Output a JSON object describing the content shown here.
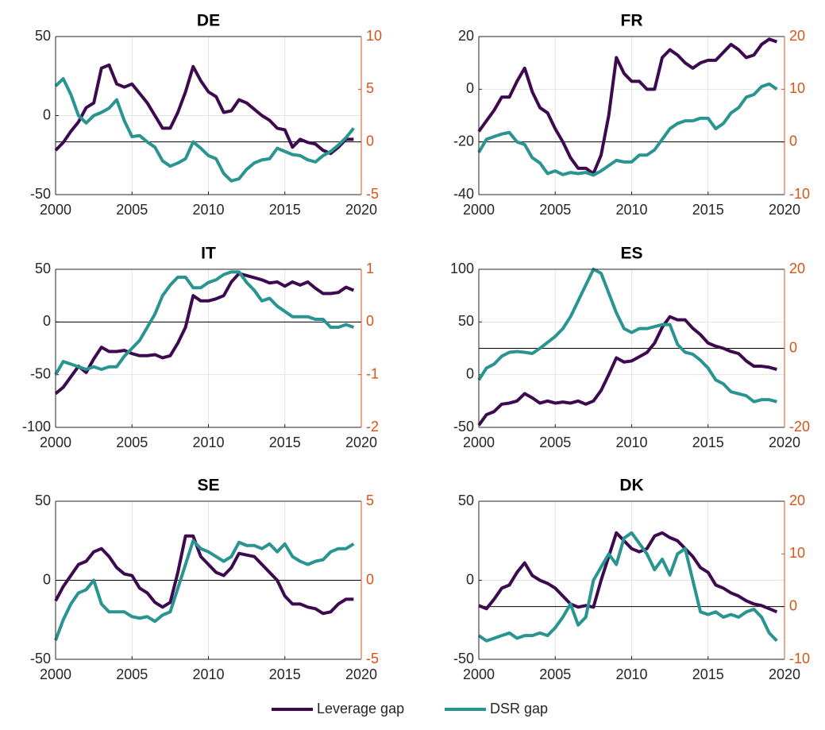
{
  "chart_data": [
    {
      "type": "line",
      "title": "DE",
      "x": [
        2000,
        2000.5,
        2001,
        2001.5,
        2002,
        2002.5,
        2003,
        2003.5,
        2004,
        2004.5,
        2005,
        2005.5,
        2006,
        2006.5,
        2007,
        2007.5,
        2008,
        2008.5,
        2009,
        2009.5,
        2010,
        2010.5,
        2011,
        2011.5,
        2012,
        2012.5,
        2013,
        2013.5,
        2014,
        2014.5,
        2015,
        2015.5,
        2016,
        2016.5,
        2017,
        2017.5,
        2018,
        2018.5,
        2019,
        2019.5
      ],
      "series": [
        {
          "name": "Leverage gap",
          "color": "#3d0a4f",
          "axis": "y",
          "values": [
            -22,
            -17,
            -10,
            -4,
            5,
            8,
            30,
            32,
            20,
            18,
            20,
            14,
            8,
            0,
            -8,
            -8,
            2,
            15,
            31,
            22,
            15,
            12,
            2,
            3,
            10,
            8,
            4,
            0,
            -3,
            -8,
            -9,
            -20,
            -15,
            -17,
            -18,
            -22,
            -24,
            -20,
            -15,
            -15
          ]
        },
        {
          "name": "DSR gap",
          "color": "#2a9490",
          "axis": "y2",
          "values": [
            5.3,
            6,
            4.5,
            2.5,
            1.8,
            2.5,
            2.8,
            3.2,
            4,
            2,
            0.5,
            0.6,
            0,
            -0.5,
            -1.8,
            -2.3,
            -2,
            -1.6,
            0,
            -0.6,
            -1.3,
            -1.6,
            -3,
            -3.7,
            -3.5,
            -2.6,
            -2,
            -1.7,
            -1.6,
            -0.6,
            -0.9,
            -1.2,
            -1.3,
            -1.7,
            -1.9,
            -1.3,
            -0.9,
            -0.3,
            0.4,
            1.3
          ]
        }
      ],
      "xlim": [
        2000,
        2020
      ],
      "xticks": [
        2000,
        2005,
        2010,
        2015,
        2020
      ],
      "ylim": [
        -50,
        50
      ],
      "yticks": [
        -50,
        0,
        50
      ],
      "y2lim": [
        -5,
        10
      ],
      "y2ticks": [
        -5,
        0,
        5,
        10
      ],
      "grid": true
    },
    {
      "type": "line",
      "title": "FR",
      "x": [
        2000,
        2000.5,
        2001,
        2001.5,
        2002,
        2002.5,
        2003,
        2003.5,
        2004,
        2004.5,
        2005,
        2005.5,
        2006,
        2006.5,
        2007,
        2007.5,
        2008,
        2008.5,
        2009,
        2009.5,
        2010,
        2010.5,
        2011,
        2011.5,
        2012,
        2012.5,
        2013,
        2013.5,
        2014,
        2014.5,
        2015,
        2015.5,
        2016,
        2016.5,
        2017,
        2017.5,
        2018,
        2018.5,
        2019,
        2019.5
      ],
      "series": [
        {
          "name": "Leverage gap",
          "color": "#3d0a4f",
          "axis": "y",
          "values": [
            -16,
            -12,
            -8,
            -3,
            -3,
            3,
            8,
            -1,
            -7,
            -9,
            -15,
            -20,
            -26,
            -30,
            -30,
            -32,
            -25,
            -10,
            12,
            6,
            3,
            3,
            0,
            0,
            12,
            15,
            13,
            10,
            8,
            10,
            11,
            11,
            14,
            17,
            15,
            12,
            13,
            17,
            19,
            18
          ]
        },
        {
          "name": "DSR gap",
          "color": "#2a9490",
          "axis": "y2",
          "values": [
            -2,
            0.5,
            1,
            1.5,
            1.8,
            0,
            -0.5,
            -3,
            -4,
            -6,
            -5.5,
            -6.2,
            -5.8,
            -6,
            -5.8,
            -6.3,
            -5.5,
            -4.5,
            -3.5,
            -3.8,
            -3.8,
            -2.5,
            -2.5,
            -1.5,
            0.5,
            2.5,
            3.5,
            4,
            4,
            4.5,
            4.5,
            2.5,
            3.5,
            5.5,
            6.5,
            8.5,
            9,
            10.5,
            11,
            10
          ]
        }
      ],
      "xlim": [
        2000,
        2020
      ],
      "xticks": [
        2000,
        2005,
        2010,
        2015,
        2020
      ],
      "ylim": [
        -40,
        20
      ],
      "yticks": [
        -40,
        -20,
        0,
        20
      ],
      "y2lim": [
        -10,
        20
      ],
      "y2ticks": [
        -10,
        0,
        10,
        20
      ],
      "grid": true
    },
    {
      "type": "line",
      "title": "IT",
      "x": [
        2000,
        2000.5,
        2001,
        2001.5,
        2002,
        2002.5,
        2003,
        2003.5,
        2004,
        2004.5,
        2005,
        2005.5,
        2006,
        2006.5,
        2007,
        2007.5,
        2008,
        2008.5,
        2009,
        2009.5,
        2010,
        2010.5,
        2011,
        2011.5,
        2012,
        2012.5,
        2013,
        2013.5,
        2014,
        2014.5,
        2015,
        2015.5,
        2016,
        2016.5,
        2017,
        2017.5,
        2018,
        2018.5,
        2019,
        2019.5
      ],
      "series": [
        {
          "name": "Leverage gap",
          "color": "#3d0a4f",
          "axis": "y",
          "values": [
            -68,
            -62,
            -52,
            -42,
            -48,
            -35,
            -24,
            -28,
            -28,
            -27,
            -30,
            -32,
            -32,
            -31,
            -34,
            -32,
            -20,
            -5,
            25,
            20,
            20,
            22,
            25,
            38,
            46,
            44,
            42,
            40,
            37,
            38,
            34,
            38,
            35,
            38,
            32,
            27,
            27,
            28,
            33,
            30
          ]
        },
        {
          "name": "DSR gap",
          "color": "#2a9490",
          "axis": "y2",
          "values": [
            -1,
            -0.75,
            -0.8,
            -0.85,
            -0.9,
            -0.85,
            -0.9,
            -0.85,
            -0.85,
            -0.65,
            -0.5,
            -0.35,
            -0.1,
            0.15,
            0.5,
            0.7,
            0.85,
            0.85,
            0.65,
            0.65,
            0.75,
            0.8,
            0.9,
            0.95,
            0.95,
            0.75,
            0.6,
            0.4,
            0.45,
            0.3,
            0.2,
            0.1,
            0.1,
            0.1,
            0.05,
            0.05,
            -0.1,
            -0.1,
            -0.05,
            -0.1
          ]
        }
      ],
      "xlim": [
        2000,
        2020
      ],
      "xticks": [
        2000,
        2005,
        2010,
        2015,
        2020
      ],
      "ylim": [
        -100,
        50
      ],
      "yticks": [
        -100,
        -50,
        0,
        50
      ],
      "y2lim": [
        -2,
        1
      ],
      "y2ticks": [
        -2,
        -1,
        0,
        1
      ],
      "grid": true
    },
    {
      "type": "line",
      "title": "ES",
      "x": [
        2000,
        2000.5,
        2001,
        2001.5,
        2002,
        2002.5,
        2003,
        2003.5,
        2004,
        2004.5,
        2005,
        2005.5,
        2006,
        2006.5,
        2007,
        2007.5,
        2008,
        2008.5,
        2009,
        2009.5,
        2010,
        2010.5,
        2011,
        2011.5,
        2012,
        2012.5,
        2013,
        2013.5,
        2014,
        2014.5,
        2015,
        2015.5,
        2016,
        2016.5,
        2017,
        2017.5,
        2018,
        2018.5,
        2019,
        2019.5
      ],
      "series": [
        {
          "name": "Leverage gap",
          "color": "#3d0a4f",
          "axis": "y",
          "values": [
            -48,
            -38,
            -35,
            -28,
            -27,
            -25,
            -18,
            -22,
            -27,
            -25,
            -27,
            -26,
            -27,
            -25,
            -28,
            -25,
            -15,
            0,
            16,
            12,
            13,
            17,
            21,
            30,
            45,
            55,
            52,
            52,
            44,
            38,
            30,
            27,
            25,
            22,
            20,
            13,
            8,
            8,
            7,
            5
          ]
        },
        {
          "name": "DSR gap",
          "color": "#2a9490",
          "axis": "y2",
          "values": [
            -8,
            -5,
            -4,
            -2,
            -1,
            -0.8,
            -1,
            -1.3,
            0,
            1.5,
            3,
            5,
            8,
            12,
            16,
            20,
            19,
            14,
            9,
            5,
            4,
            5,
            5,
            5.5,
            6,
            6,
            1,
            -1,
            -1.5,
            -3,
            -5,
            -8,
            -9,
            -11,
            -11.5,
            -12,
            -13.5,
            -13,
            -13,
            -13.5
          ]
        }
      ],
      "xlim": [
        2000,
        2020
      ],
      "xticks": [
        2000,
        2005,
        2010,
        2015,
        2020
      ],
      "ylim": [
        -50,
        100
      ],
      "yticks": [
        -50,
        0,
        50,
        100
      ],
      "y2lim": [
        -20,
        20
      ],
      "y2ticks": [
        -20,
        0,
        20
      ],
      "grid": true
    },
    {
      "type": "line",
      "title": "SE",
      "x": [
        2000,
        2000.5,
        2001,
        2001.5,
        2002,
        2002.5,
        2003,
        2003.5,
        2004,
        2004.5,
        2005,
        2005.5,
        2006,
        2006.5,
        2007,
        2007.5,
        2008,
        2008.5,
        2009,
        2009.5,
        2010,
        2010.5,
        2011,
        2011.5,
        2012,
        2012.5,
        2013,
        2013.5,
        2014,
        2014.5,
        2015,
        2015.5,
        2016,
        2016.5,
        2017,
        2017.5,
        2018,
        2018.5,
        2019,
        2019.5
      ],
      "series": [
        {
          "name": "Leverage gap",
          "color": "#3d0a4f",
          "axis": "y",
          "values": [
            -13,
            -4,
            3,
            10,
            12,
            18,
            20,
            15,
            8,
            4,
            3,
            -5,
            -8,
            -14,
            -17,
            -14,
            5,
            28,
            28,
            15,
            10,
            5,
            3,
            8,
            17,
            16,
            15,
            10,
            5,
            0,
            -10,
            -15,
            -15,
            -17,
            -18,
            -21,
            -20,
            -15,
            -12,
            -12
          ]
        },
        {
          "name": "DSR gap",
          "color": "#2a9490",
          "axis": "y2",
          "values": [
            -3.8,
            -2.5,
            -1.5,
            -0.8,
            -0.6,
            0,
            -1.5,
            -2,
            -2,
            -2,
            -2.3,
            -2.4,
            -2.3,
            -2.6,
            -2.2,
            -2,
            -0.5,
            1,
            2.5,
            2,
            1.8,
            1.5,
            1.2,
            1.5,
            2.4,
            2.2,
            2.2,
            2,
            2.3,
            1.8,
            2.3,
            1.5,
            1.2,
            1,
            1.2,
            1.3,
            1.8,
            2,
            2,
            2.3
          ]
        }
      ],
      "xlim": [
        2000,
        2020
      ],
      "xticks": [
        2000,
        2005,
        2010,
        2015,
        2020
      ],
      "ylim": [
        -50,
        50
      ],
      "yticks": [
        -50,
        0,
        50
      ],
      "y2lim": [
        -5,
        5
      ],
      "y2ticks": [
        -5,
        0,
        5
      ],
      "grid": true
    },
    {
      "type": "line",
      "title": "DK",
      "x": [
        2000,
        2000.5,
        2001,
        2001.5,
        2002,
        2002.5,
        2003,
        2003.5,
        2004,
        2004.5,
        2005,
        2005.5,
        2006,
        2006.5,
        2007,
        2007.5,
        2008,
        2008.5,
        2009,
        2009.5,
        2010,
        2010.5,
        2011,
        2011.5,
        2012,
        2012.5,
        2013,
        2013.5,
        2014,
        2014.5,
        2015,
        2015.5,
        2016,
        2016.5,
        2017,
        2017.5,
        2018,
        2018.5,
        2019,
        2019.5
      ],
      "series": [
        {
          "name": "Leverage gap",
          "color": "#3d0a4f",
          "axis": "y",
          "values": [
            -16,
            -18,
            -12,
            -5,
            -3,
            5,
            11,
            3,
            0,
            -2,
            -5,
            -10,
            -15,
            -17,
            -16,
            -17,
            0,
            15,
            30,
            25,
            20,
            18,
            20,
            28,
            30,
            27,
            25,
            20,
            15,
            8,
            5,
            -3,
            -5,
            -8,
            -10,
            -13,
            -15,
            -16,
            -18,
            -20
          ]
        },
        {
          "name": "DSR gap",
          "color": "#2a9490",
          "axis": "y2",
          "values": [
            -5.5,
            -6.5,
            -6,
            -5.5,
            -5,
            -6,
            -5.5,
            -5.5,
            -5,
            -5.5,
            -4,
            -2,
            0.5,
            -3.5,
            -2,
            5,
            7.5,
            10,
            8,
            13,
            14,
            12,
            10,
            7,
            9,
            6,
            10,
            11,
            5,
            -1,
            -1.5,
            -1,
            -2,
            -1.5,
            -2,
            -1,
            -0.5,
            -2,
            -5,
            -6.5
          ]
        }
      ],
      "xlim": [
        2000,
        2020
      ],
      "xticks": [
        2000,
        2005,
        2010,
        2015,
        2020
      ],
      "ylim": [
        -50,
        50
      ],
      "yticks": [
        -50,
        0,
        50
      ],
      "y2lim": [
        -10,
        20
      ],
      "y2ticks": [
        -10,
        0,
        10,
        20
      ],
      "grid": true
    }
  ]
}
